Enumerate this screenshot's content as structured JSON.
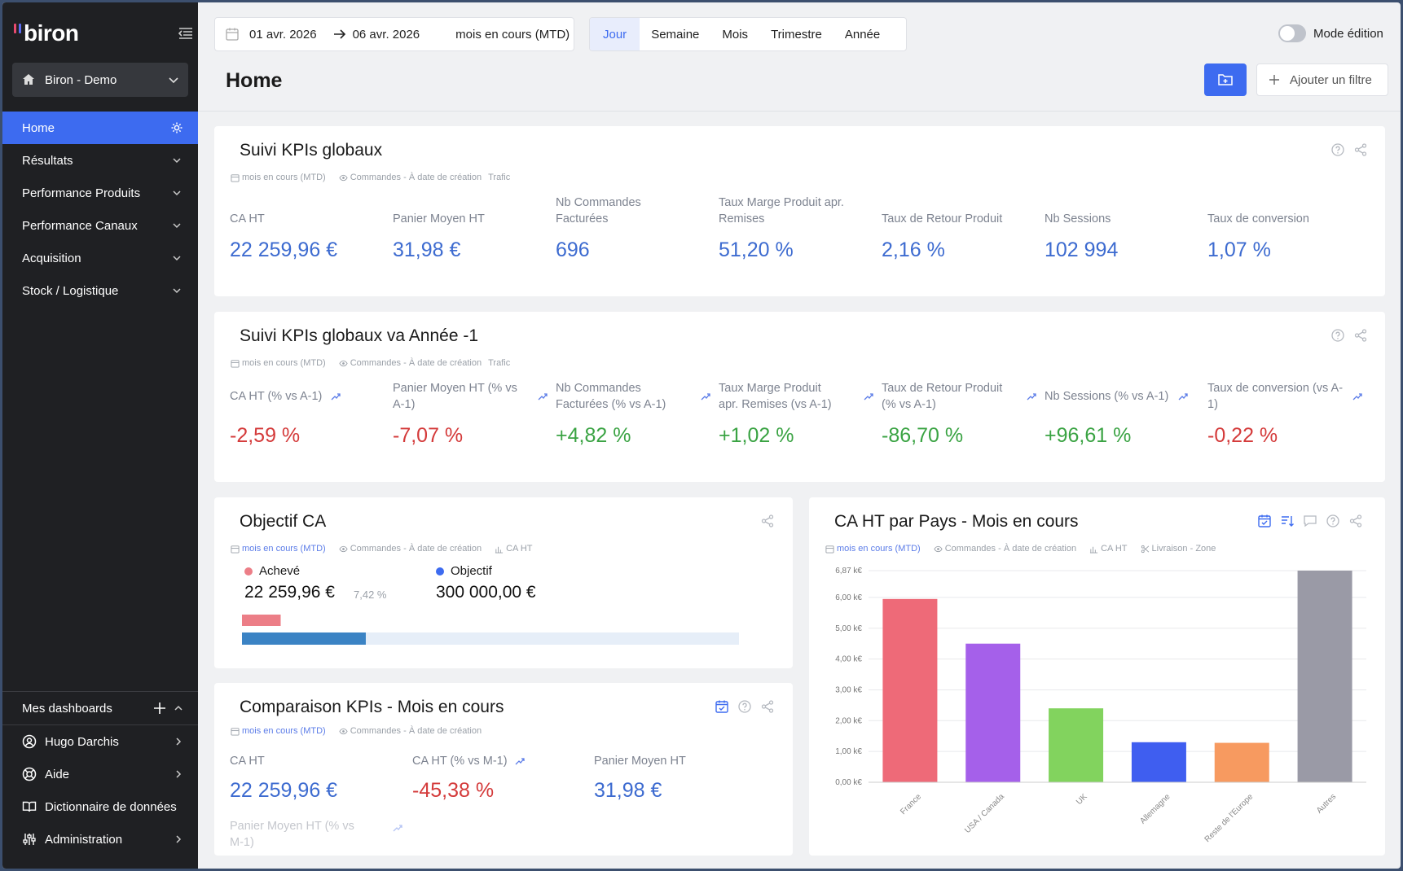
{
  "brand": {
    "name": "biron",
    "bar_colors": [
      "#e84a6f",
      "#5b6cf0"
    ]
  },
  "sidebar": {
    "workspace": "Biron - Demo",
    "items": [
      {
        "label": "Home",
        "active": true
      },
      {
        "label": "Résultats"
      },
      {
        "label": "Performance Produits"
      },
      {
        "label": "Performance Canaux"
      },
      {
        "label": "Acquisition"
      },
      {
        "label": "Stock / Logistique"
      }
    ],
    "bottom": {
      "dashboards": "Mes dashboards",
      "user": "Hugo Darchis",
      "help": "Aide",
      "dictionary": "Dictionnaire de données",
      "admin": "Administration"
    }
  },
  "topbar": {
    "date_from": "01 avr. 2026",
    "date_to": "06 avr. 2026",
    "date_range_label": "mois en cours (MTD)",
    "periods": [
      "Jour",
      "Semaine",
      "Mois",
      "Trimestre",
      "Année"
    ],
    "active_period": "Jour",
    "mode_edition": "Mode édition",
    "add_filter": "Ajouter un filtre"
  },
  "page": {
    "title": "Home"
  },
  "meta": {
    "mtd": "mois en cours (MTD)",
    "orders": "Commandes - À date de création",
    "trafic": "Trafic",
    "ca_ht": "CA HT",
    "zone": "Livraison - Zone"
  },
  "card1": {
    "title": "Suivi KPIs globaux",
    "kpis": [
      {
        "label": "CA HT",
        "value": "22 259,96 €"
      },
      {
        "label": "Panier Moyen HT",
        "value": "31,98 €"
      },
      {
        "label": "Nb Commandes Facturées",
        "value": "696"
      },
      {
        "label": "Taux Marge Produit apr. Remises",
        "value": "51,20 %"
      },
      {
        "label": "Taux de Retour Produit",
        "value": "2,16 %"
      },
      {
        "label": "Nb Sessions",
        "value": "102 994"
      },
      {
        "label": "Taux de conversion",
        "value": "1,07 %"
      }
    ]
  },
  "card2": {
    "title": "Suivi KPIs globaux va Année -1",
    "kpis": [
      {
        "label": "CA HT (% vs A-1)",
        "value": "-2,59 %",
        "tone": "red"
      },
      {
        "label": "Panier Moyen HT (% vs A-1)",
        "value": "-7,07 %",
        "tone": "red"
      },
      {
        "label": "Nb Commandes Facturées (% vs A-1)",
        "value": "+4,82 %",
        "tone": "green"
      },
      {
        "label": "Taux Marge Produit apr. Remises (vs A-1)",
        "value": "+1,02 %",
        "tone": "green"
      },
      {
        "label": "Taux de Retour Produit (% vs A-1)",
        "value": "-86,70 %",
        "tone": "green"
      },
      {
        "label": "Nb Sessions (% vs A-1)",
        "value": "+96,61 %",
        "tone": "green"
      },
      {
        "label": "Taux de conversion (vs A-1)",
        "value": "-0,22 %",
        "tone": "red"
      }
    ]
  },
  "card3": {
    "title": "Objectif CA",
    "achieved_label": "Achevé",
    "achieved_value": "22 259,96 €",
    "achieved_pct": "7,42 %",
    "achieved_ratio": 0.0742,
    "goal_label": "Objectif",
    "goal_value": "300 000,00 €",
    "achieved_color": "#ec7e87",
    "goal_color": "#3d6bf0"
  },
  "card4": {
    "title": "Comparaison KPIs - Mois en cours",
    "kpis": [
      {
        "label": "CA HT",
        "value": "22 259,96 €",
        "tone": "blue"
      },
      {
        "label": "CA HT (% vs M-1)",
        "value": "-45,38 %",
        "tone": "red"
      },
      {
        "label": "Panier Moyen HT",
        "value": "31,98 €",
        "tone": "blue"
      },
      {
        "label": "Panier Moyen HT (% vs M-1)",
        "value": "",
        "tone": "blue"
      }
    ]
  },
  "chart_data": {
    "type": "bar",
    "title": "CA HT par Pays - Mois en cours",
    "categories": [
      "France",
      "USA / Canada",
      "UK",
      "Allemagne",
      "Reste de l'Europe",
      "Autres"
    ],
    "values": [
      5.95,
      4.5,
      2.4,
      1.3,
      1.28,
      6.87
    ],
    "colors": [
      "#ee6a78",
      "#a560ea",
      "#82d35e",
      "#3f5ef0",
      "#f79a60",
      "#9a9aa6"
    ],
    "yticks": [
      "0,00 k€",
      "1,00 k€",
      "2,00 k€",
      "3,00 k€",
      "4,00 k€",
      "5,00 k€",
      "6,00 k€",
      "6,87 k€"
    ],
    "ytick_values": [
      0,
      1,
      2,
      3,
      4,
      5,
      6,
      6.87
    ],
    "ylim": [
      0,
      6.87
    ],
    "grid": true
  }
}
